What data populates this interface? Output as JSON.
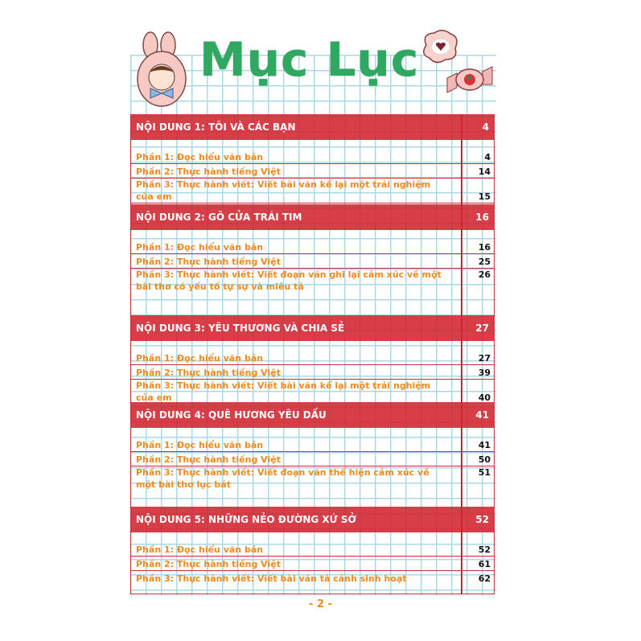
{
  "title": "Mục Lục",
  "colors": {
    "title": "#2fa862",
    "header_bar": "#d2232d",
    "item_text": "#f08a1c",
    "grid": "#a9d8e6"
  },
  "decorations": [
    "bunny-girl-sticker-icon",
    "heart-cookie-sticker-icon",
    "strawberry-candy-sticker-icon"
  ],
  "sections": [
    {
      "title": "NỘI DUNG 1: TÔI VÀ CÁC BẠN",
      "page": "4",
      "items": [
        {
          "label": "Phần 1: Đọc hiểu văn bản",
          "page": "4"
        },
        {
          "label": "Phần 2: Thực hành tiếng Việt",
          "page": "14"
        },
        {
          "label": "Phần 3: Thực hành viết: Viết bài văn kể lại một trải nghiệm của em",
          "page": "15"
        }
      ]
    },
    {
      "title": "NỘI DUNG 2: GÕ CỬA TRÁI TIM",
      "page": "16",
      "items": [
        {
          "label": "Phần 1: Đọc hiểu văn bản",
          "page": "16"
        },
        {
          "label": "Phần 2: Thực hành tiếng Việt",
          "page": "25"
        },
        {
          "label": "Phần 3: Thực hành viết: Viết đoạn văn ghi lại cảm xúc về một bài thơ có yếu tố tự sự và miêu tả",
          "page": "26"
        }
      ]
    },
    {
      "title": "NỘI DUNG 3: YÊU THƯƠNG VÀ CHIA SẺ",
      "page": "27",
      "items": [
        {
          "label": "Phần 1: Đọc hiểu văn bản",
          "page": "27"
        },
        {
          "label": "Phần 2: Thực hành tiếng Việt",
          "page": "39"
        },
        {
          "label": "Phần 3: Thực hành viết: Viết bài văn kể lại một trải nghiệm của em",
          "page": "40"
        }
      ]
    },
    {
      "title": "NỘI DUNG 4: QUÊ HƯƠNG YÊU DẤU",
      "page": "41",
      "items": [
        {
          "label": "Phần 1: Đọc hiểu văn bản",
          "page": "41"
        },
        {
          "label": "Phần 2: Thực hành tiếng Việt",
          "page": "50"
        },
        {
          "label": "Phần 3: Thực hành viết: Viết đoạn văn thể hiện cảm xúc về một bài thơ lục bát",
          "page": "51"
        }
      ]
    },
    {
      "title": "NỘI DUNG 5: NHỮNG NẺO ĐƯỜNG XỨ SỞ",
      "page": "52",
      "items": [
        {
          "label": "Phần 1: Đọc hiểu văn bản",
          "page": "52"
        },
        {
          "label": "Phần 2: Thực hành tiếng Việt",
          "page": "61"
        },
        {
          "label": "Phần 3: Thực hành viết: Viết bài văn tả cảnh sinh hoạt",
          "page": "62"
        }
      ]
    }
  ],
  "page_number": "- 2 -"
}
